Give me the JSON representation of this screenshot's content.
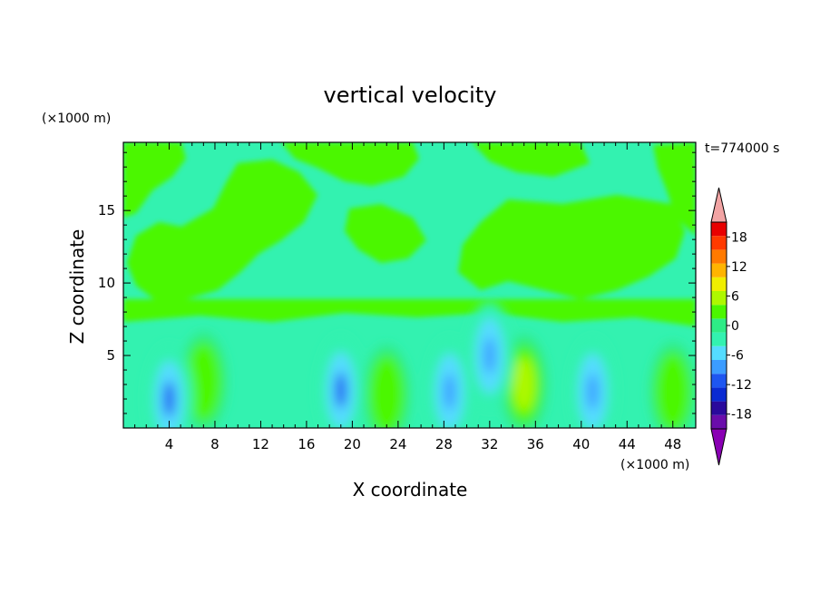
{
  "chart_data": {
    "type": "heatmap",
    "title": "vertical velocity",
    "time_label": "t=774000 s",
    "xlabel": "X coordinate",
    "ylabel": "Z coordinate",
    "x_unit_label": "(×1000 m)",
    "y_unit_label": "(×1000 m)",
    "xlim": [
      0,
      50
    ],
    "ylim": [
      0,
      19.7
    ],
    "x_ticks": [
      4,
      8,
      12,
      16,
      20,
      24,
      28,
      32,
      36,
      40,
      44,
      48
    ],
    "y_ticks": [
      5,
      10,
      15
    ],
    "colorbar": {
      "levels": [
        -21,
        -18,
        -15,
        -12,
        -9,
        -6,
        -3,
        0,
        3,
        6,
        9,
        12,
        15,
        18,
        21
      ],
      "tick_labels": [
        "18",
        "12",
        "6",
        "0",
        "-6",
        "-12",
        "-18"
      ],
      "tick_values": [
        18,
        12,
        6,
        0,
        -6,
        -12,
        -18
      ],
      "colors": [
        "#6a0dab",
        "#2a0a9c",
        "#0a2ad2",
        "#1e56f0",
        "#3b9cff",
        "#55dcff",
        "#33f2b0",
        "#2eec86",
        "#4cf700",
        "#aef800",
        "#f0ee00",
        "#ffb400",
        "#ff7a00",
        "#ff3a00",
        "#e80000"
      ],
      "over_color": "#f2a4a4",
      "under_color": "#8a00b4"
    },
    "features": [
      {
        "kind": "updraft",
        "x": 7,
        "z": 3.2,
        "w": 5
      },
      {
        "kind": "updraft",
        "x": 23,
        "z": 2.3,
        "w": 5
      },
      {
        "kind": "updraft",
        "x": 35,
        "z": 3.0,
        "w": 6
      },
      {
        "kind": "updraft",
        "x": 48,
        "z": 2.5,
        "w": 4
      },
      {
        "kind": "downdraft",
        "x": 4,
        "z": 2.0,
        "w": -10
      },
      {
        "kind": "downdraft",
        "x": 19,
        "z": 2.6,
        "w": -10
      },
      {
        "kind": "downdraft",
        "x": 28.5,
        "z": 2.5,
        "w": -7
      },
      {
        "kind": "downdraft",
        "x": 32,
        "z": 5.0,
        "w": -8
      },
      {
        "kind": "downdraft",
        "x": 41,
        "z": 2.5,
        "w": -8
      }
    ]
  }
}
